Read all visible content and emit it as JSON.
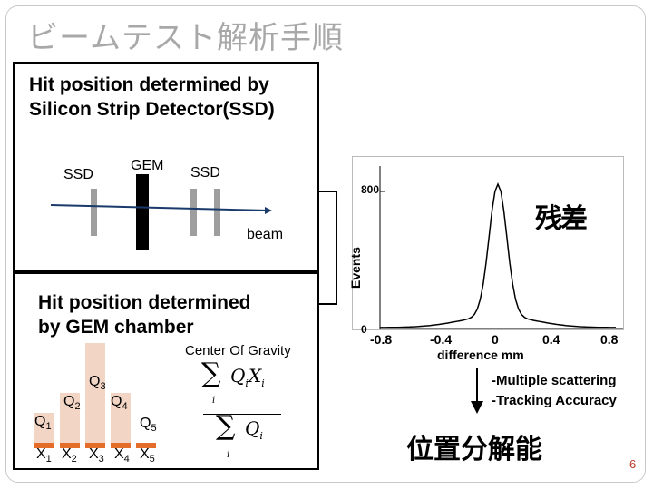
{
  "title": "ビームテスト解析手順",
  "ssd_section": {
    "heading_line1": "Hit position determined by",
    "heading_line2": "Silicon Strip Detector(SSD)",
    "ssd_left": "SSD",
    "gem": "GEM",
    "ssd_right": "SSD",
    "beam": "beam"
  },
  "gem_section": {
    "heading_line1": "Hit position determined",
    "heading_line2": "by GEM chamber",
    "cog": "Center Of Gravity",
    "q_labels": [
      "Q1",
      "Q2",
      "Q3",
      "Q4",
      "Q5"
    ],
    "x_labels": [
      "X1",
      "X2",
      "X3",
      "X4",
      "X5"
    ],
    "bar_values": [
      0.3,
      0.5,
      1.0,
      0.5,
      0.0
    ]
  },
  "histogram": {
    "ylabel": "Events",
    "xlabel": "difference mm",
    "ytick": "800",
    "yzero": "0",
    "xticks": [
      "-0.8",
      "-0.4",
      "0",
      "0.4",
      "0.8"
    ],
    "annotation": "残差"
  },
  "notes": {
    "line1": "-Multiple scattering",
    "line2": "-Tracking Accuracy",
    "result": "位置分解能"
  },
  "page_number": "6",
  "colors": {
    "bar_fill": "#f2d5c5",
    "bar_base": "#e46d2a",
    "title": "#a8a8a8",
    "page_number": "#c0392b"
  }
}
